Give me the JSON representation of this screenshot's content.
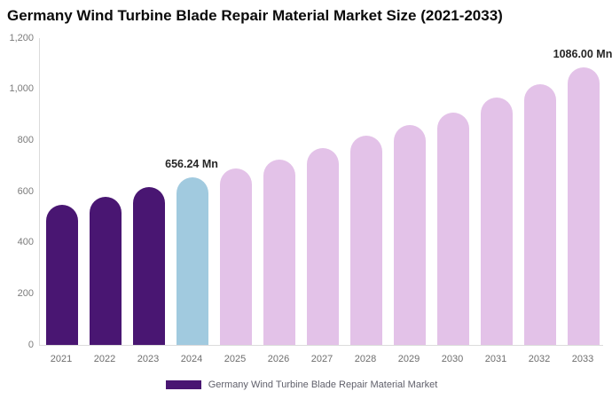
{
  "chart_data": {
    "type": "bar",
    "title": "Germany Wind Turbine Blade Repair Material Market Size (2021-2033)",
    "unit": "Mn",
    "categories": [
      "2021",
      "2022",
      "2023",
      "2024",
      "2025",
      "2026",
      "2027",
      "2028",
      "2029",
      "2030",
      "2031",
      "2032",
      "2033"
    ],
    "values": [
      547,
      579,
      618,
      656.24,
      689,
      726,
      770,
      818,
      860,
      910,
      967,
      1018,
      1086
    ],
    "bar_styles": [
      "historical",
      "historical",
      "historical",
      "current",
      "forecast",
      "forecast",
      "forecast",
      "forecast",
      "forecast",
      "forecast",
      "forecast",
      "forecast",
      "forecast"
    ],
    "colors": {
      "historical": "#491672",
      "current": "#A1CADF",
      "forecast": "#E3C2E8",
      "axis_line": "#dbdbdb",
      "tick_text": "#7b7b7b",
      "annotation_text": "#262626",
      "title_text": "#0b0b0b"
    },
    "ylim": [
      0,
      1200
    ],
    "yticks": [
      0,
      200,
      400,
      600,
      800,
      1000,
      1200
    ],
    "ytick_labels": [
      "0",
      "200",
      "400",
      "600",
      "800",
      "1,000",
      "1,200"
    ],
    "grid": false,
    "annotations": [
      {
        "category": "2024",
        "text": "656.24 Mn"
      },
      {
        "category": "2033",
        "text": "1086.00 Mn"
      }
    ],
    "legend": {
      "position": "bottom",
      "label": "Germany Wind Turbine Blade Repair Material Market",
      "swatch_color": "#491672"
    },
    "xlabel": "",
    "ylabel": ""
  }
}
